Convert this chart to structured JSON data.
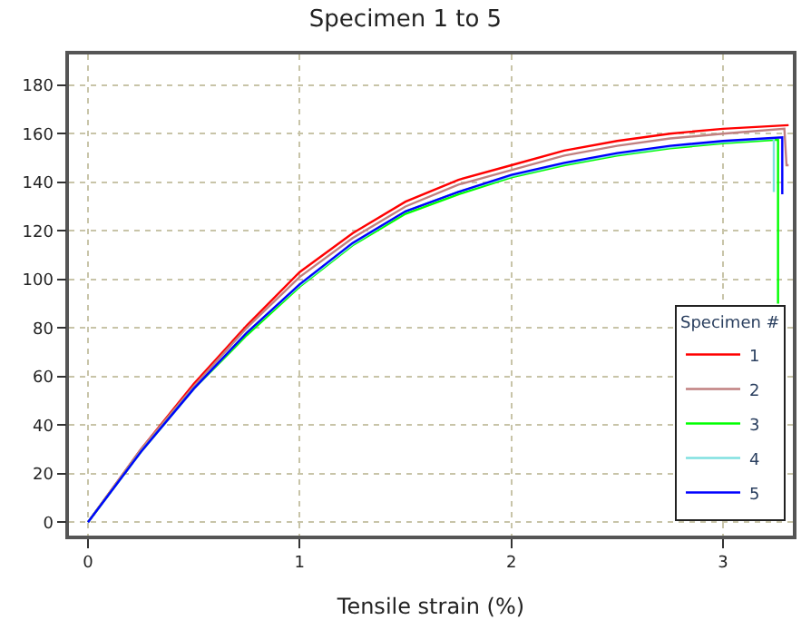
{
  "chart_data": {
    "type": "line",
    "title": "Specimen 1 to 5",
    "xlabel": "Tensile strain (%)",
    "legend_title": "Specimen #",
    "xlim": [
      -0.09,
      3.33
    ],
    "ylim": [
      -5.5,
      192.6
    ],
    "xticks": [
      0,
      1,
      2,
      3
    ],
    "yticks": [
      0,
      20,
      40,
      60,
      80,
      100,
      120,
      140,
      160,
      180
    ],
    "grid": true,
    "legend": "bottom right",
    "marker": "none",
    "line_style": "solid",
    "series": [
      {
        "name": "1",
        "color": "#ff0000",
        "x": [
          0,
          0.25,
          0.5,
          0.75,
          1,
          1.25,
          1.5,
          1.75,
          2,
          2.25,
          2.5,
          2.75,
          3,
          3.31
        ],
        "values": [
          0,
          30,
          57,
          81,
          103,
          119,
          132,
          141,
          147,
          153,
          157,
          160,
          162,
          163.5
        ]
      },
      {
        "name": "2",
        "color": "#c08080",
        "x": [
          0,
          0.25,
          0.5,
          0.75,
          1,
          1.25,
          1.5,
          1.75,
          2,
          2.25,
          2.5,
          2.75,
          3,
          3.29,
          3.3,
          3.31
        ],
        "values": [
          0,
          30,
          56,
          80,
          101,
          117,
          130,
          139,
          145,
          151,
          155,
          158,
          160,
          162,
          147,
          147
        ]
      },
      {
        "name": "3",
        "color": "#00ff00",
        "x": [
          0,
          0.25,
          0.5,
          0.75,
          1,
          1.25,
          1.5,
          1.75,
          2,
          2.25,
          2.5,
          2.75,
          3,
          3.26,
          3.26
        ],
        "values": [
          0,
          29,
          55,
          77,
          97,
          114,
          127,
          135,
          142,
          147,
          151,
          154,
          156,
          157.5,
          90
        ]
      },
      {
        "name": "4",
        "color": "#80e0e0",
        "x": [
          0,
          0.25,
          0.5,
          0.75,
          1,
          1.25,
          1.5,
          1.75,
          2,
          2.25,
          2.5,
          2.75,
          3,
          3.24,
          3.24
        ],
        "values": [
          0,
          29,
          55,
          78,
          97.5,
          114.5,
          128,
          136,
          142.5,
          147.5,
          151.5,
          154.5,
          156.5,
          158,
          136
        ]
      },
      {
        "name": "5",
        "color": "#0000ff",
        "x": [
          0,
          0.25,
          0.5,
          0.75,
          1,
          1.25,
          1.5,
          1.75,
          2,
          2.25,
          2.5,
          2.75,
          3,
          3.28,
          3.28
        ],
        "values": [
          0,
          29,
          55,
          78,
          98,
          115,
          128,
          136,
          143,
          148,
          152,
          155,
          157,
          158.5,
          135
        ]
      }
    ]
  }
}
